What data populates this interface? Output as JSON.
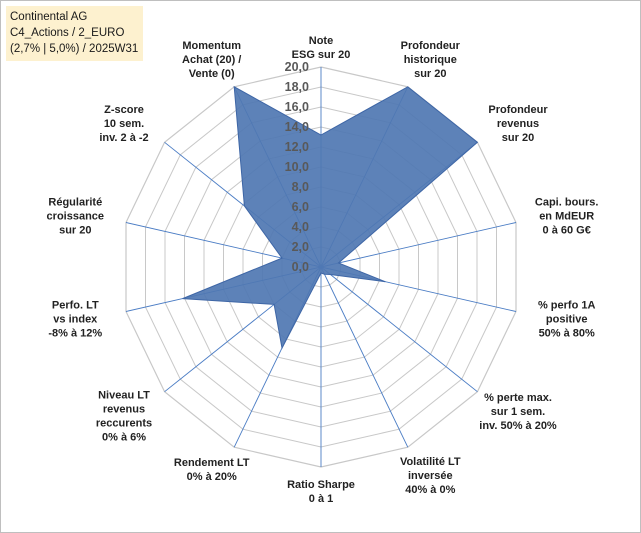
{
  "title_box": {
    "line1": "Continental AG",
    "line2": "C4_Actions / 2_EURO",
    "line3": "(2,7% | 5,0%) / 2025W31"
  },
  "chart_data": {
    "type": "radar",
    "rmin": 0,
    "rmax": 20,
    "tick_step": 2,
    "tick_labels": [
      "0,0",
      "2,0",
      "4,0",
      "6,0",
      "8,0",
      "10,0",
      "12,0",
      "14,0",
      "16,0",
      "18,0",
      "20,0"
    ],
    "grid": true,
    "axes": [
      {
        "label": [
          "Note",
          "ESG sur 20"
        ],
        "value": 13.2
      },
      {
        "label": [
          "Profondeur",
          "historique",
          "sur 20"
        ],
        "value": 20.0
      },
      {
        "label": [
          "Profondeur",
          "revenus",
          "sur 20"
        ],
        "value": 20.0
      },
      {
        "label": [
          "Capi. bours.",
          "en MdEUR",
          "0 à 60 G€"
        ],
        "value": 1.8
      },
      {
        "label": [
          "% perfo 1A",
          "positive",
          "50% à 80%"
        ],
        "value": 6.6
      },
      {
        "label": [
          "% perte max.",
          "sur 1 sem.",
          "inv. 50% à 20%"
        ],
        "value": 1.2
      },
      {
        "label": [
          "Volatilité LT",
          "inversée",
          "40% à 0%"
        ],
        "value": 0.8
      },
      {
        "label": [
          "Ratio Sharpe",
          "0 à 1"
        ],
        "value": 0.6
      },
      {
        "label": [
          "Rendement LT",
          "0% à 20%"
        ],
        "value": 9.0
      },
      {
        "label": [
          "Niveau LT",
          "revenus",
          "reccurents",
          "0% à 6%"
        ],
        "value": 6.0
      },
      {
        "label": [
          "Perfo. LT",
          "vs index",
          "-8% à 12%"
        ],
        "value": 14.2
      },
      {
        "label": [
          "Régularité",
          "croissance",
          "sur 20"
        ],
        "value": 4.0
      },
      {
        "label": [
          "Z-score",
          "10 sem.",
          "inv. 2 à -2"
        ],
        "value": 9.8
      },
      {
        "label": [
          "Momentum",
          "Achat (20) /",
          "Vente (0)"
        ],
        "value": 20.0
      }
    ],
    "colors": {
      "fill": "#4f77b2",
      "stroke": "#3e66a6",
      "spoke": "#4a7cc4",
      "grid": "#c8c8c8"
    }
  }
}
